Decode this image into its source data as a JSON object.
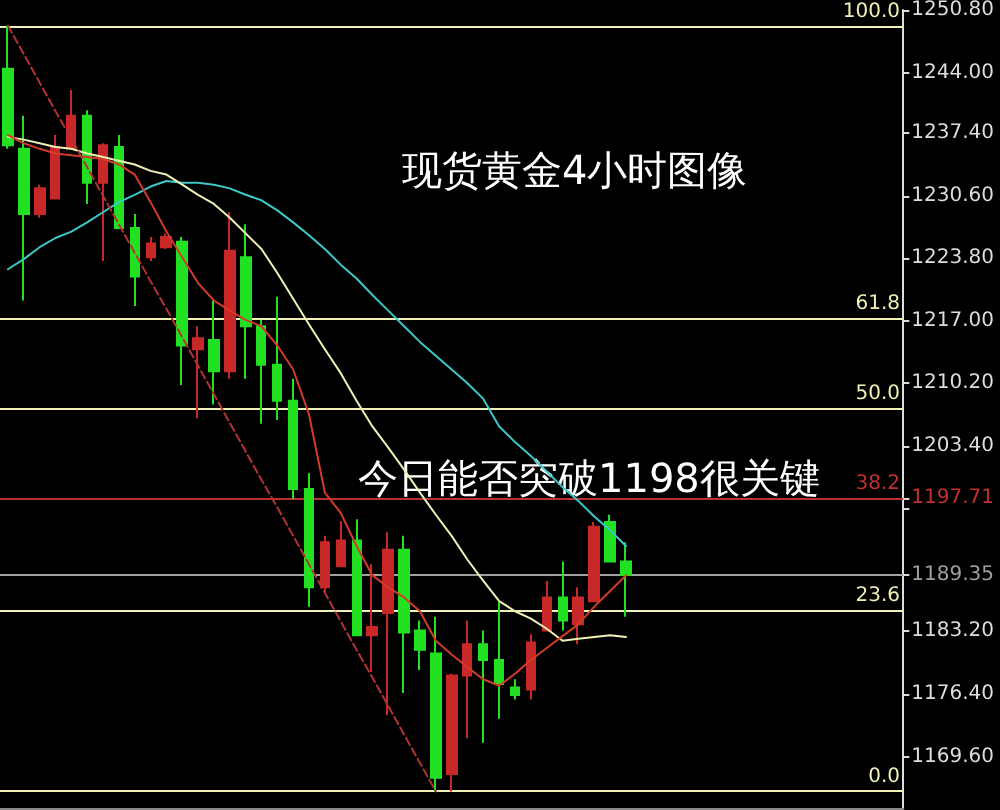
{
  "chart_data": {
    "type": "candlestick",
    "title": "现货黄金4小时图像",
    "subtitle": "今日能否突破1198很关键",
    "categories": [
      null,
      null,
      null,
      null,
      null,
      null,
      null,
      null,
      null,
      null,
      null,
      null,
      null,
      null,
      null,
      null,
      null,
      null,
      null,
      null,
      null,
      null,
      null,
      null,
      null,
      null,
      null,
      null,
      null,
      null,
      null,
      null,
      null,
      null,
      null,
      null,
      null,
      null,
      null,
      null,
      null,
      null,
      null,
      null,
      null,
      null,
      null,
      null,
      null,
      null,
      null,
      null,
      null,
      null,
      null,
      null,
      null
    ],
    "series": [
      {
        "type": "line",
        "color": "#3cc8c8",
        "values": [
          1222.6,
          1223.7,
          1225.0,
          1226.0,
          1226.7,
          1227.7,
          1228.8,
          1229.9,
          1230.7,
          1231.6,
          1232.2,
          1232.0,
          1232.0,
          1231.8,
          1231.4,
          1230.7,
          1230.1,
          1229.0,
          1227.7,
          1226.3,
          1224.8,
          1223.1,
          1221.6,
          1219.8,
          1218.1,
          1216.4,
          1214.7,
          1213.2,
          1211.7,
          1210.2,
          1208.5,
          1205.5,
          1203.8,
          1202.3,
          1200.6,
          1198.9,
          1197.4,
          1195.7,
          1194.2,
          1192.5,
          null,
          null,
          null,
          null,
          null,
          null,
          null,
          null,
          null,
          null,
          null,
          null,
          null,
          null,
          null,
          null,
          null
        ]
      },
      {
        "type": "line",
        "color": "#f0f0b4",
        "values": [
          1237.0,
          1236.7,
          1236.3,
          1235.9,
          1235.7,
          1235.2,
          1234.8,
          1234.4,
          1234.0,
          1233.3,
          1232.9,
          1231.8,
          1230.7,
          1229.7,
          1228.2,
          1226.5,
          1224.8,
          1222.2,
          1219.4,
          1216.6,
          1213.9,
          1211.3,
          1208.3,
          1205.5,
          1203.2,
          1200.8,
          1198.3,
          1195.9,
          1193.6,
          1191.0,
          1188.7,
          1186.5,
          1185.4,
          1184.6,
          1183.5,
          1182.2,
          1182.4,
          1182.6,
          1182.8,
          1182.6,
          null,
          null,
          null,
          null,
          null,
          null,
          null,
          null,
          null,
          null,
          null,
          null,
          null,
          null,
          null,
          null,
          null
        ]
      },
      {
        "type": "line",
        "color": "#d23c28",
        "values": [
          1237.2,
          1236.3,
          1235.7,
          1235.2,
          1235.0,
          1234.8,
          1234.6,
          1234.0,
          1232.9,
          1229.9,
          1226.7,
          1223.9,
          1221.1,
          1219.2,
          1218.1,
          1217.1,
          1216.4,
          1214.3,
          1211.7,
          1206.8,
          1198.3,
          1196.1,
          1192.5,
          1189.3,
          1188.0,
          1186.9,
          1185.4,
          1182.2,
          1180.7,
          1179.3,
          1178.0,
          1177.3,
          1178.6,
          1180.1,
          1181.4,
          1182.7,
          1184.0,
          1185.9,
          1187.6,
          1189.3,
          null,
          null,
          null,
          null,
          null,
          null,
          null,
          null,
          null,
          null,
          null,
          null,
          null,
          null,
          null,
          null,
          null
        ]
      },
      {
        "type": "line",
        "color": "#b43232",
        "line_style": "dashed",
        "values": [
          1249.1,
          1246.0,
          1242.9,
          1239.8,
          1236.8,
          1233.7,
          1230.6,
          1227.5,
          1224.4,
          1221.3,
          1218.3,
          1215.2,
          1212.1,
          1209.0,
          1205.9,
          1202.8,
          1199.7,
          1196.7,
          1193.6,
          1190.5,
          1187.4,
          1184.3,
          1181.2,
          1178.2,
          1175.1,
          1172.0,
          1168.9,
          1165.8,
          null,
          null,
          null,
          null,
          null,
          null,
          null,
          null,
          null,
          null,
          null,
          null,
          null,
          null,
          null,
          null,
          null,
          null,
          null,
          null,
          null,
          null,
          null,
          null,
          null,
          null,
          null,
          null,
          null
        ]
      },
      {
        "ohlc": [
          [
            1244.4,
            1249.1,
            1235.7,
            1236.1
          ],
          [
            1235.7,
            1239.3,
            1219.2,
            1228.6
          ],
          [
            1228.6,
            1231.8,
            1228.2,
            1231.4
          ],
          [
            1230.3,
            1237.2,
            1230.3,
            1235.9
          ],
          [
            1235.7,
            1242.1,
            1235.7,
            1239.3
          ],
          [
            1239.3,
            1239.9,
            1229.7,
            1232.0
          ],
          [
            1232.0,
            1236.3,
            1223.5,
            1236.1
          ],
          [
            1235.9,
            1237.2,
            1227.1,
            1227.1
          ],
          [
            1227.1,
            1228.6,
            1218.6,
            1221.8
          ],
          [
            1223.9,
            1226.1,
            1223.5,
            1225.4
          ],
          [
            1225.0,
            1226.5,
            1224.8,
            1226.1
          ],
          [
            1225.6,
            1226.1,
            1210.0,
            1214.3
          ],
          [
            1213.9,
            1216.4,
            1206.4,
            1215.1
          ],
          [
            1214.9,
            1219.2,
            1207.9,
            1211.5
          ],
          [
            1211.5,
            1228.8,
            1210.7,
            1224.6
          ],
          [
            1223.9,
            1227.5,
            1210.7,
            1216.4
          ],
          [
            1216.4,
            1217.1,
            1205.8,
            1212.2
          ],
          [
            1212.2,
            1219.6,
            1206.2,
            1208.3
          ],
          [
            1208.3,
            1210.7,
            1197.6,
            1198.7
          ],
          [
            1198.7,
            1200.4,
            1185.9,
            1188.0
          ],
          [
            1188.0,
            1193.6,
            1187.4,
            1192.9
          ],
          [
            1190.3,
            1195.2,
            1190.3,
            1193.1
          ],
          [
            1193.1,
            1195.4,
            1182.8,
            1182.8
          ],
          [
            1182.8,
            1190.5,
            1178.8,
            1183.7
          ],
          [
            1185.2,
            1194.0,
            1174.1,
            1192.1
          ],
          [
            1192.1,
            1193.6,
            1176.5,
            1183.1
          ],
          [
            1183.3,
            1184.4,
            1179.0,
            1181.2
          ],
          [
            1180.8,
            1184.8,
            1165.8,
            1167.3
          ],
          [
            1167.7,
            1178.6,
            1165.8,
            1178.4
          ],
          [
            1178.4,
            1184.4,
            1171.6,
            1181.8
          ],
          [
            1181.8,
            1183.3,
            1171.1,
            1180.1
          ],
          [
            1180.1,
            1186.5,
            1173.7,
            1177.5
          ],
          [
            1177.1,
            1178.0,
            1175.8,
            1176.3
          ],
          [
            1176.9,
            1182.9,
            1175.8,
            1182.0
          ],
          [
            1183.3,
            1188.7,
            1183.3,
            1186.9
          ],
          [
            1186.9,
            1190.8,
            1183.3,
            1184.4
          ],
          [
            1184.0,
            1188.0,
            1181.8,
            1186.9
          ],
          [
            1186.5,
            1195.1,
            1186.5,
            1194.6
          ],
          [
            1195.1,
            1195.9,
            1190.8,
            1190.8
          ],
          [
            1190.8,
            1192.9,
            1184.8,
            1189.35
          ],
          null,
          null,
          null,
          null,
          null,
          null,
          null,
          null,
          null,
          null,
          null,
          null,
          null,
          null,
          null,
          null,
          null
        ],
        "colors": [
          "#22e022",
          "#22e022",
          "#c82828",
          "#c82828",
          "#c82828",
          "#22e022",
          "#c82828",
          "#22e022",
          "#22e022",
          "#c82828",
          "#c82828",
          "#22e022",
          "#c82828",
          "#22e022",
          "#c82828",
          "#22e022",
          "#22e022",
          "#22e022",
          "#22e022",
          "#22e022",
          "#c82828",
          "#c82828",
          "#22e022",
          "#c82828",
          "#c82828",
          "#22e022",
          "#22e022",
          "#22e022",
          "#c82828",
          "#c82828",
          "#22e022",
          "#22e022",
          "#22e022",
          "#c82828",
          "#c82828",
          "#22e022",
          "#c82828",
          "#c82828",
          "#22e022",
          "#22e022",
          null,
          null,
          null,
          null,
          null,
          null,
          null,
          null,
          null,
          null,
          null,
          null,
          null,
          null,
          null,
          null,
          null
        ]
      }
    ],
    "ylim": [
      1164.0,
      1250.8
    ],
    "yticks": [
      {
        "value": 1169.6,
        "label": "1169.60"
      },
      {
        "value": 1176.4,
        "label": "1176.40"
      },
      {
        "value": 1183.2,
        "label": "1183.20"
      },
      {
        "value": 1189.35,
        "label": "1189.35"
      },
      {
        "value": 1196.6,
        "label": null
      },
      {
        "value": 1197.71,
        "label": "1197.71"
      },
      {
        "value": 1203.4,
        "label": "1203.40"
      },
      {
        "value": 1210.2,
        "label": "1210.20"
      },
      {
        "value": 1217.0,
        "label": "1217.00"
      },
      {
        "value": 1223.8,
        "label": "1223.80"
      },
      {
        "value": 1230.6,
        "label": "1230.60"
      },
      {
        "value": 1237.4,
        "label": "1237.40"
      },
      {
        "value": 1244.0,
        "label": "1244.00"
      },
      {
        "value": 1250.8,
        "label": "1250.80"
      }
    ],
    "tick_labels": "y",
    "ref_lines": [
      {
        "axis": "y",
        "value": 1249.1,
        "color": "#f0f0b4"
      },
      {
        "axis": "y",
        "value": 1217.3,
        "color": "#f0f0b4"
      },
      {
        "axis": "y",
        "value": 1207.5,
        "color": "#f0f0b4"
      },
      {
        "axis": "y",
        "value": 1197.71,
        "color": "#c03030"
      },
      {
        "axis": "y",
        "value": 1189.35,
        "color": "#a0a0a0"
      },
      {
        "axis": "y",
        "value": 1185.5,
        "color": "#f0f0b4"
      },
      {
        "axis": "y",
        "value": 1165.8,
        "color": "#f0f0b4"
      }
    ],
    "annotations": [
      {
        "text": "100.0",
        "y": 1249.1
      },
      {
        "text": "61.8",
        "y": 1217.3
      },
      {
        "text": "50.0",
        "y": 1207.5
      },
      {
        "text": "38.2",
        "y": 1197.71
      },
      {
        "text": "23.6",
        "y": 1185.5
      },
      {
        "text": "0.0",
        "y": 1165.8
      }
    ]
  }
}
